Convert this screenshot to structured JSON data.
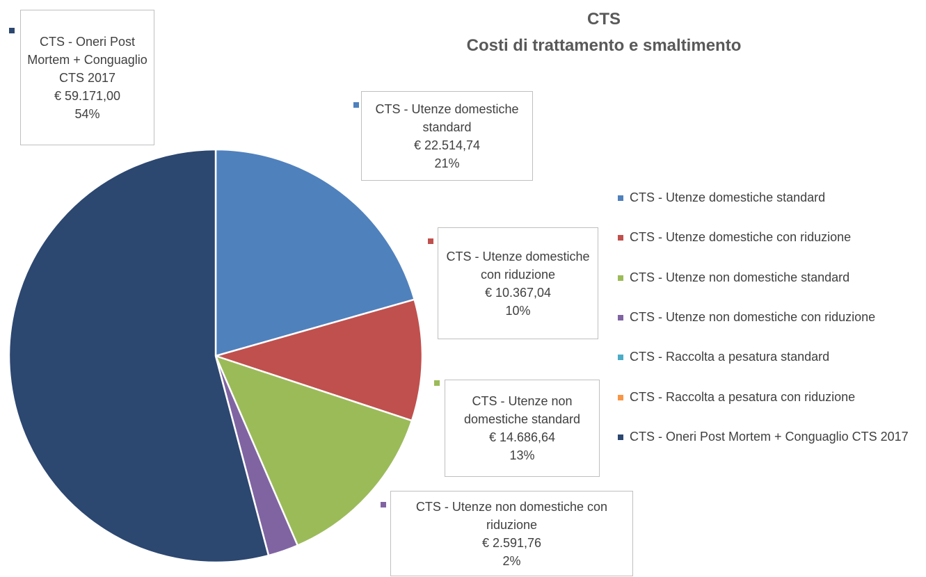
{
  "chart_data": {
    "type": "pie",
    "title": "CTS",
    "subtitle": "Costi di trattamento e smaltimento",
    "categories": [
      "CTS - Utenze domestiche standard",
      "CTS - Utenze domestiche con riduzione",
      "CTS - Utenze non domestiche standard",
      "CTS - Utenze non domestiche con riduzione",
      "CTS - Raccolta a pesatura standard",
      "CTS - Raccolta a pesatura con riduzione",
      "CTS - Oneri Post Mortem + Conguaglio CTS 2017"
    ],
    "values": [
      22514.74,
      10367.04,
      14686.64,
      2591.76,
      0,
      0,
      59171.0
    ],
    "value_labels": [
      "€ 22.514,74",
      "€ 10.367,04",
      "€ 14.686,64",
      "€ 2.591,76",
      null,
      null,
      "€ 59.171,00"
    ],
    "percent_labels": [
      "21%",
      "10%",
      "13%",
      "2%",
      null,
      null,
      "54%"
    ],
    "colors": [
      "#4f81bd",
      "#c0504d",
      "#9bbb59",
      "#8064a2",
      "#4bacc6",
      "#f79646",
      "#2c4770"
    ],
    "legend": "right"
  }
}
